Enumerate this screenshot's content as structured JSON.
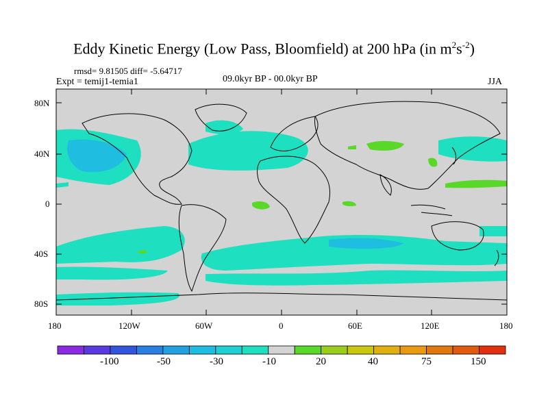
{
  "title": {
    "prefix": "Eddy Kinetic Energy (Low Pass, Bloomfield) at 200 hPa (in m",
    "sup1": "2",
    "mid": "s",
    "sup2": "-2",
    "suffix": ")"
  },
  "stats": "rmsd= 9.81505 diff= -5.64717",
  "experiment": "Expt = temij1-temia1",
  "period": "09.0kyr BP - 00.0kyr BP",
  "season": "JJA",
  "lat_ticks": [
    "80N",
    "40N",
    "0",
    "40S",
    "80S"
  ],
  "lon_ticks": [
    "180",
    "120W",
    "60W",
    "0",
    "60E",
    "120E",
    "180"
  ],
  "colorbar": {
    "colors": [
      "#8a2be2",
      "#5a3ae0",
      "#3355dd",
      "#2a7fe0",
      "#22a0e0",
      "#1fbde0",
      "#1ecfd4",
      "#1ee0c0",
      "#d3d3d3",
      "#5ad82a",
      "#9acd1a",
      "#c8c810",
      "#e0b010",
      "#e89a10",
      "#e07810",
      "#e05a10",
      "#e03010"
    ],
    "labels": [
      "-100",
      "-50",
      "-30",
      "-10",
      "20",
      "40",
      "75",
      "150"
    ]
  },
  "map_colors": {
    "background": "#d3d3d3",
    "negative_small": "#1ee0c0",
    "negative_mid": "#1fbde0",
    "positive_small": "#5ad82a"
  }
}
